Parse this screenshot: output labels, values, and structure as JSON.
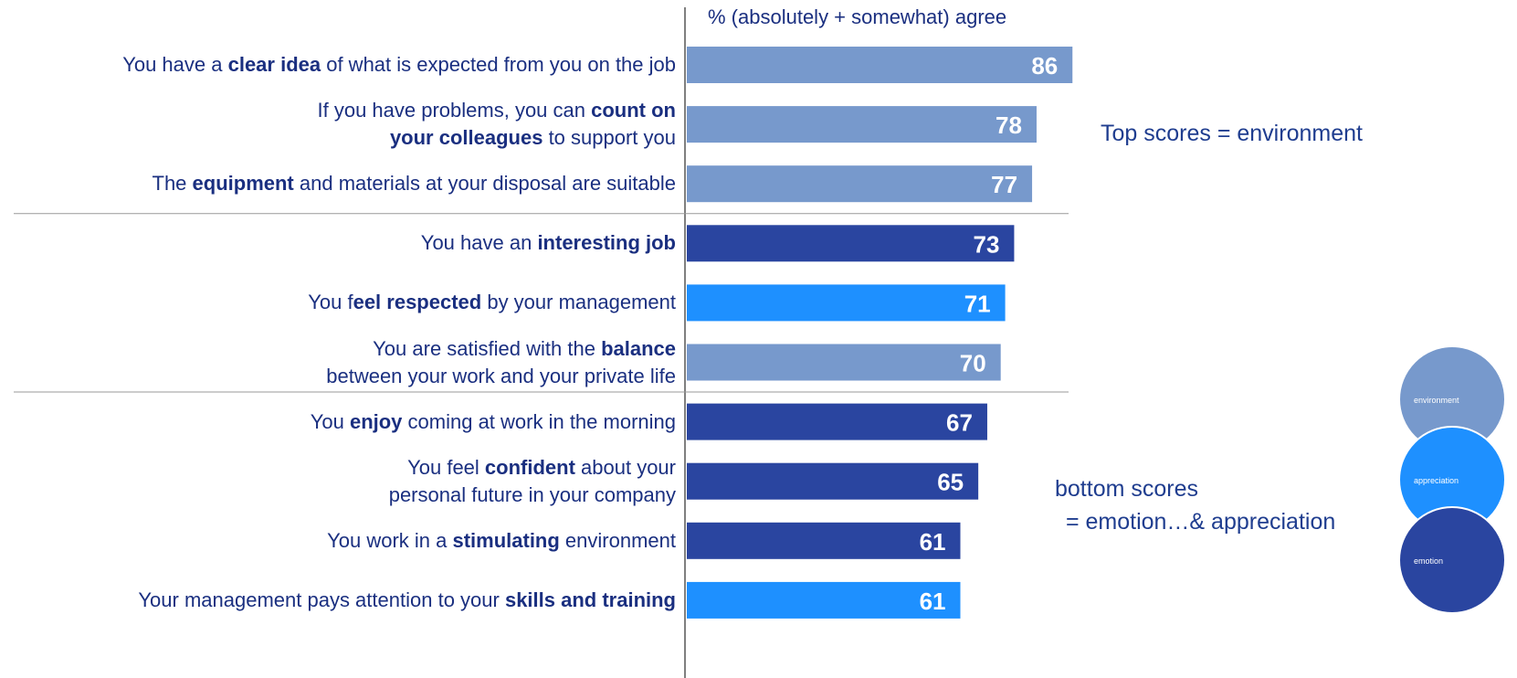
{
  "chart_data": {
    "type": "bar",
    "orientation": "horizontal",
    "header": "% (absolutely + somewhat) agree",
    "categories": [
      [
        "You have a ",
        "clear idea",
        " of what is expected from you on the job"
      ],
      [
        "If you have problems, you can ",
        "count on\nyour colleagues",
        " to support you"
      ],
      [
        "The ",
        "equipment",
        " and materials at your disposal are suitable"
      ],
      [
        "You have an ",
        "interesting job",
        ""
      ],
      [
        "You f",
        "eel respected",
        " by your management"
      ],
      [
        "You are satisfied with the ",
        "balance",
        "\nbetween your work and your private life"
      ],
      [
        "You ",
        "enjoy",
        " coming at work in the morning "
      ],
      [
        "You feel ",
        "confident",
        " about your\npersonal future in your company"
      ],
      [
        "You work in a ",
        "stimulating",
        " environment"
      ],
      [
        "Your management pays attention to your ",
        "skills and training",
        ""
      ]
    ],
    "values": [
      86,
      78,
      77,
      73,
      71,
      70,
      67,
      65,
      61,
      61
    ],
    "colors": [
      "#7799cc",
      "#7799cc",
      "#7799cc",
      "#2a45a0",
      "#1e90ff",
      "#7799cc",
      "#2a45a0",
      "#2a45a0",
      "#2a45a0",
      "#1e90ff"
    ],
    "xlim": [
      0,
      100
    ],
    "separators_after": [
      2,
      5
    ],
    "annotations": [
      "Top scores = environment",
      "bottom scores",
      " = emotion…& appreciation"
    ],
    "bubbles": [
      {
        "label": "environment",
        "color": "#7799cc"
      },
      {
        "label": "appreciation",
        "color": "#1e90ff"
      },
      {
        "label": "emotion",
        "color": "#2a45a0"
      }
    ]
  }
}
